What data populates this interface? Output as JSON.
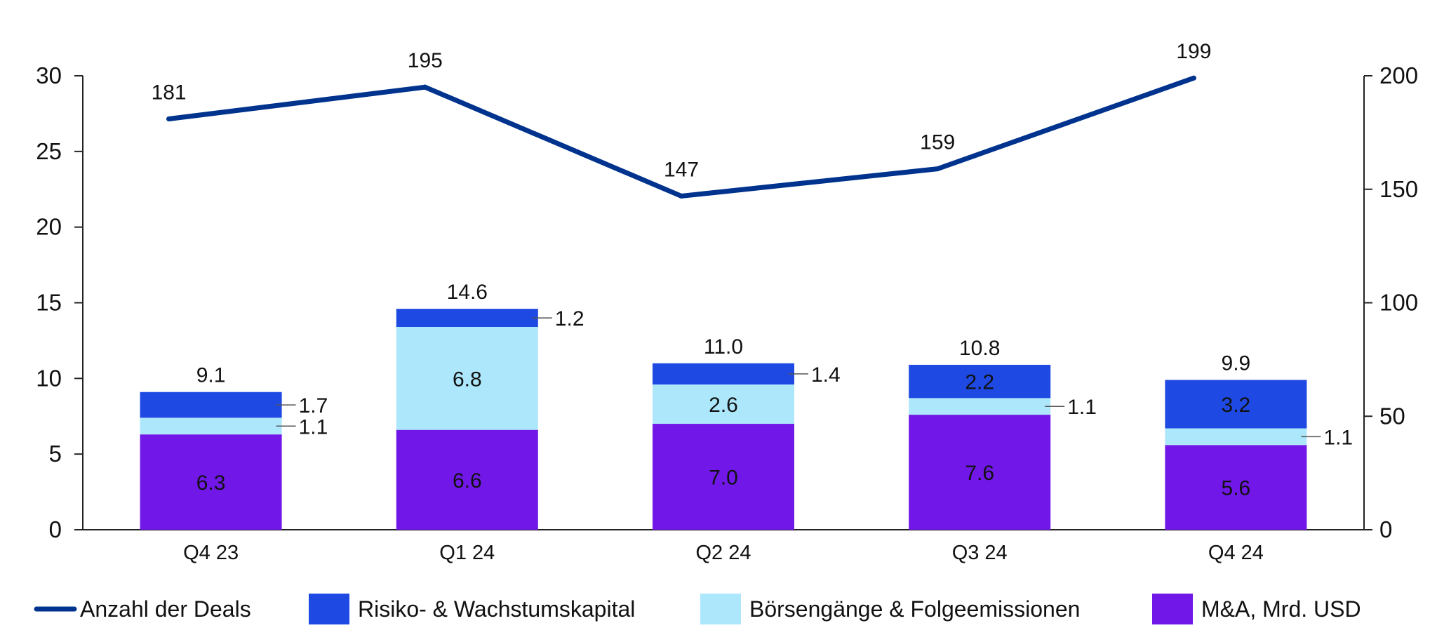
{
  "chart_data": {
    "type": "bar",
    "stacked": true,
    "categories": [
      "Q4 23",
      "Q1 24",
      "Q2 24",
      "Q3 24",
      "Q4 24"
    ],
    "series": [
      {
        "name": "M&A, Mrd. USD",
        "color": "#7118e8",
        "values": [
          6.3,
          6.6,
          7.0,
          7.6,
          5.6
        ],
        "labels": [
          "6.3",
          "6.6",
          "7.0",
          "7.6",
          "5.6"
        ]
      },
      {
        "name": "Börsengänge & Folgeemissionen",
        "color": "#ade7fb",
        "values": [
          1.1,
          6.8,
          2.6,
          1.1,
          1.1
        ],
        "labels": [
          "1.1",
          "6.8",
          "2.6",
          "1.1",
          "1.1"
        ]
      },
      {
        "name": "Risiko- & Wachstumskapital",
        "color": "#1e49e2",
        "values": [
          1.7,
          1.2,
          1.4,
          2.2,
          3.2
        ],
        "labels": [
          "1.7",
          "1.2",
          "1.4",
          "2.2",
          "3.2"
        ]
      }
    ],
    "totals": [
      "9.1",
      "14.6",
      "11.0",
      "10.8",
      "9.9"
    ],
    "line_series": {
      "name": "Anzahl der Deals",
      "color": "#00338d",
      "values": [
        181,
        195,
        147,
        159,
        199
      ],
      "labels": [
        "181",
        "195",
        "147",
        "159",
        "199"
      ]
    },
    "ylim": [
      0,
      30
    ],
    "yticks": [
      "0",
      "5",
      "10",
      "15",
      "20",
      "25",
      "30"
    ],
    "y2lim": [
      0,
      200
    ],
    "y2ticks": [
      "0",
      "50",
      "100",
      "150",
      "200"
    ],
    "legend_position": "bottom",
    "grid": false,
    "title": "",
    "xlabel": "",
    "ylabel": ""
  },
  "legend": [
    {
      "label": "Anzahl der Deals",
      "kind": "line",
      "color": "#00338d"
    },
    {
      "label": "Risiko- & Wachstumskapital",
      "kind": "box",
      "color": "#1e49e2"
    },
    {
      "label": "Börsengänge & Folgeemissionen",
      "kind": "box",
      "color": "#ade7fb"
    },
    {
      "label": "M&A, Mrd. USD",
      "kind": "box",
      "color": "#7118e8"
    }
  ]
}
